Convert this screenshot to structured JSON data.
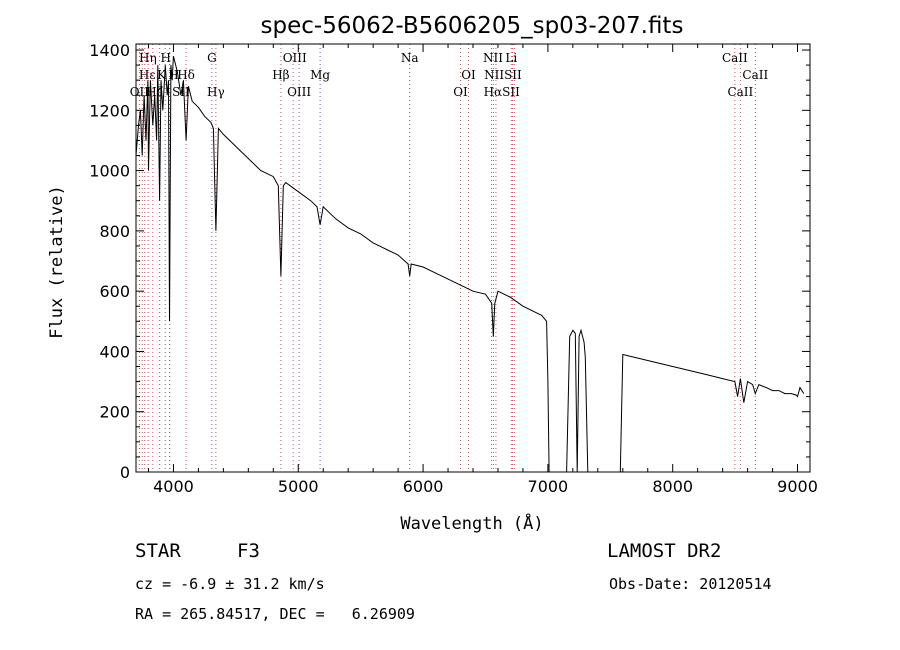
{
  "chart_data": {
    "type": "line",
    "title": "spec-56062-B5606205_sp03-207.fits",
    "xlabel": "Wavelength (Å)",
    "ylabel": "Flux (relative)",
    "xlim": [
      3700,
      9100
    ],
    "ylim": [
      0,
      1420
    ],
    "xticks": [
      4000,
      5000,
      6000,
      7000,
      8000,
      9000
    ],
    "yticks": [
      0,
      200,
      400,
      600,
      800,
      1000,
      1200,
      1400
    ],
    "grid": false,
    "series": [
      {
        "x": [
          3700,
          3720,
          3735,
          3750,
          3765,
          3780,
          3795,
          3800,
          3815,
          3835,
          3850,
          3865,
          3875,
          3889,
          3900,
          3915,
          3935,
          3950,
          3960,
          3968,
          3980,
          3990,
          4000,
          4030,
          4060,
          4080,
          4101,
          4120,
          4150,
          4200,
          4250,
          4300,
          4320,
          4340,
          4360,
          4400,
          4500,
          4600,
          4700,
          4800,
          4840,
          4861,
          4880,
          4900,
          5000,
          5100,
          5150,
          5175,
          5200,
          5300,
          5400,
          5500,
          5600,
          5700,
          5800,
          5880,
          5893,
          5905,
          6000,
          6100,
          6200,
          6300,
          6400,
          6500,
          6550,
          6563,
          6575,
          6600,
          6700,
          6800,
          6900,
          6950,
          6990,
          7000,
          7010,
          7050,
          7150,
          7175,
          7200,
          7220,
          7235,
          7250,
          7265,
          7290,
          7300,
          7320,
          7400,
          7500,
          7580,
          7600,
          7700,
          7800,
          7900,
          8000,
          8100,
          8200,
          8300,
          8400,
          8498,
          8520,
          8542,
          8570,
          8600,
          8640,
          8662,
          8690,
          8750,
          8800,
          8850,
          8900,
          8950,
          8990,
          9000,
          9020,
          9050
        ],
        "y": [
          1050,
          1150,
          1200,
          1050,
          1250,
          1100,
          1300,
          1000,
          1300,
          1150,
          1250,
          1100,
          1350,
          900,
          1300,
          1200,
          1350,
          1250,
          1300,
          500,
          1350,
          1300,
          1380,
          1330,
          1250,
          1300,
          1100,
          1280,
          1230,
          1210,
          1180,
          1160,
          1140,
          800,
          1140,
          1120,
          1080,
          1040,
          1000,
          980,
          950,
          650,
          950,
          960,
          930,
          900,
          880,
          820,
          880,
          840,
          810,
          790,
          760,
          740,
          720,
          690,
          650,
          690,
          680,
          660,
          640,
          620,
          600,
          590,
          560,
          450,
          560,
          600,
          580,
          550,
          530,
          520,
          500,
          300,
          0,
          0,
          0,
          450,
          470,
          460,
          0,
          450,
          470,
          430,
          380,
          0,
          0,
          0,
          0,
          390,
          380,
          370,
          360,
          350,
          340,
          330,
          320,
          310,
          300,
          250,
          310,
          230,
          300,
          290,
          260,
          290,
          280,
          270,
          270,
          260,
          260,
          255,
          250,
          280,
          260
        ]
      }
    ],
    "lines": {
      "blue_x": [
        3934,
        3969,
        4308,
        5175,
        5893
      ],
      "red_x": [
        3727,
        3750,
        3770,
        3797,
        3835,
        3889,
        3970,
        4101,
        4340,
        4861,
        4959,
        5007,
        6300,
        6364,
        6548,
        6563,
        6584,
        6707,
        6717,
        6731,
        8498,
        8542,
        8662
      ]
    },
    "line_labels": [
      {
        "text": "Hη",
        "x": 3795,
        "row": 0
      },
      {
        "text": "H",
        "x": 3938,
        "row": 0
      },
      {
        "text": "G",
        "x": 4308,
        "row": 0
      },
      {
        "text": "OIII",
        "x": 4972,
        "row": 0
      },
      {
        "text": "Na",
        "x": 5893,
        "row": 0
      },
      {
        "text": "NII",
        "x": 6560,
        "row": 0
      },
      {
        "text": "Li",
        "x": 6707,
        "row": 0
      },
      {
        "text": "CaII",
        "x": 8498,
        "row": 0
      },
      {
        "text": "Hε",
        "x": 3790,
        "row": 1
      },
      {
        "text": "K",
        "x": 3905,
        "row": 1
      },
      {
        "text": "H",
        "x": 4000,
        "row": 1
      },
      {
        "text": "Hδ",
        "x": 4101,
        "row": 1
      },
      {
        "text": "Hβ",
        "x": 4861,
        "row": 1
      },
      {
        "text": "Mg",
        "x": 5175,
        "row": 1
      },
      {
        "text": "OI",
        "x": 6364,
        "row": 1
      },
      {
        "text": "NIISII",
        "x": 6640,
        "row": 1
      },
      {
        "text": "CaII",
        "x": 8662,
        "row": 1
      },
      {
        "text": "OII",
        "x": 3727,
        "row": 2
      },
      {
        "text": "Hζ",
        "x": 3850,
        "row": 2
      },
      {
        "text": "SII",
        "x": 4060,
        "row": 2
      },
      {
        "text": "Hγ",
        "x": 4340,
        "row": 2
      },
      {
        "text": "OIII",
        "x": 5007,
        "row": 2
      },
      {
        "text": "OI",
        "x": 6300,
        "row": 2
      },
      {
        "text": "HαSII",
        "x": 6630,
        "row": 2
      },
      {
        "text": "CaII",
        "x": 8542,
        "row": 2
      }
    ],
    "colors": {
      "line": "#000000",
      "marker_blue": "#5b5bd6",
      "marker_red": "#d44c4c"
    }
  },
  "info": {
    "class_label": "STAR",
    "subclass": "F3",
    "survey": "LAMOST DR2",
    "cz": "cz = -6.9 ± 31.2 km/s",
    "obs_date": "Obs-Date: 20120514",
    "coords": "RA = 265.84517, DEC =   6.26909"
  }
}
